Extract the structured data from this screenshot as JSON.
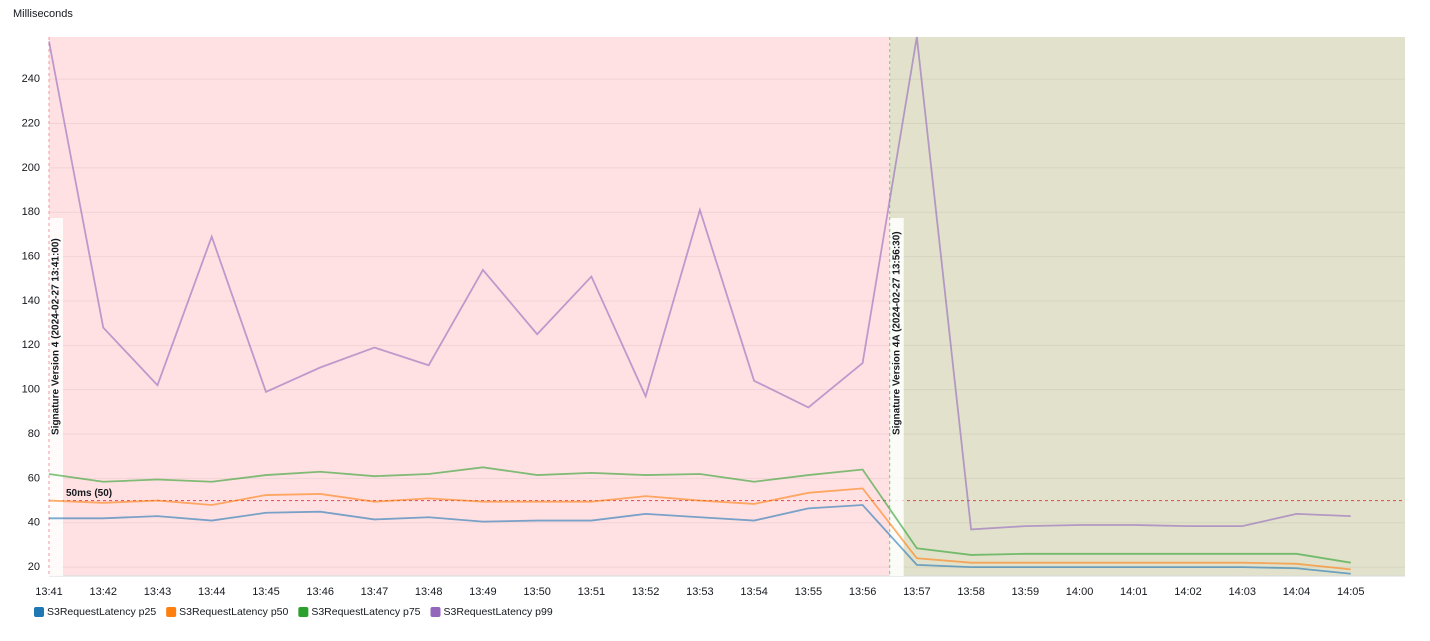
{
  "chart_data": {
    "type": "line",
    "y_label": "Milliseconds",
    "categories": [
      "13:41",
      "13:42",
      "13:43",
      "13:44",
      "13:45",
      "13:46",
      "13:47",
      "13:48",
      "13:49",
      "13:50",
      "13:51",
      "13:52",
      "13:53",
      "13:54",
      "13:55",
      "13:56",
      "13:57",
      "13:58",
      "13:59",
      "14:00",
      "14:01",
      "14:02",
      "14:03",
      "14:04",
      "14:05"
    ],
    "series": [
      {
        "name": "S3RequestLatency p25",
        "color": "#1f77b4",
        "values": [
          42,
          42,
          43,
          41,
          44.5,
          45,
          41.5,
          42.5,
          40.5,
          41,
          41,
          44,
          42.5,
          41,
          46.5,
          48,
          21,
          20,
          20,
          20,
          20,
          20,
          20,
          19.5,
          17
        ]
      },
      {
        "name": "S3RequestLatency p50",
        "color": "#ff7f0e",
        "values": [
          50,
          49,
          50,
          48,
          52.5,
          53,
          49.5,
          51,
          49.5,
          49.5,
          49.5,
          52,
          50,
          48.5,
          53.5,
          55.5,
          24,
          22,
          22,
          22,
          22,
          22,
          22,
          21.5,
          19
        ]
      },
      {
        "name": "S3RequestLatency p75",
        "color": "#2ca02c",
        "values": [
          62,
          58.5,
          59.5,
          58.5,
          61.5,
          63,
          61,
          62,
          65,
          61.5,
          62.5,
          61.5,
          62,
          58.5,
          61.5,
          64,
          28.5,
          25.5,
          26,
          26,
          26,
          26,
          26,
          26,
          22
        ]
      },
      {
        "name": "S3RequestLatency p99",
        "color": "#9467bd",
        "values": [
          257,
          128,
          102,
          169,
          99,
          110,
          119,
          111,
          154,
          125,
          151,
          97,
          181,
          104,
          92,
          112,
          259,
          37,
          38.5,
          39,
          39,
          38.5,
          38.5,
          44,
          43
        ]
      }
    ],
    "ylim": [
      16,
      259
    ],
    "yticks": [
      20,
      40,
      60,
      80,
      100,
      120,
      140,
      160,
      180,
      200,
      220,
      240
    ],
    "grid": true,
    "threshold": {
      "label": "50ms (50)",
      "value": 50,
      "color": "#e0484b"
    },
    "annotations": [
      {
        "label": "Signature Version 4 (2024-02-27 13:41:00)",
        "color": "#f29a9a",
        "band_color": "#ffe1e3"
      },
      {
        "label": "Signature Version 4A (2024-02-27 13:56:30)",
        "color": "#7cc87c",
        "band_color": "#e2e2cc"
      }
    ],
    "legend": "bottom-left"
  }
}
